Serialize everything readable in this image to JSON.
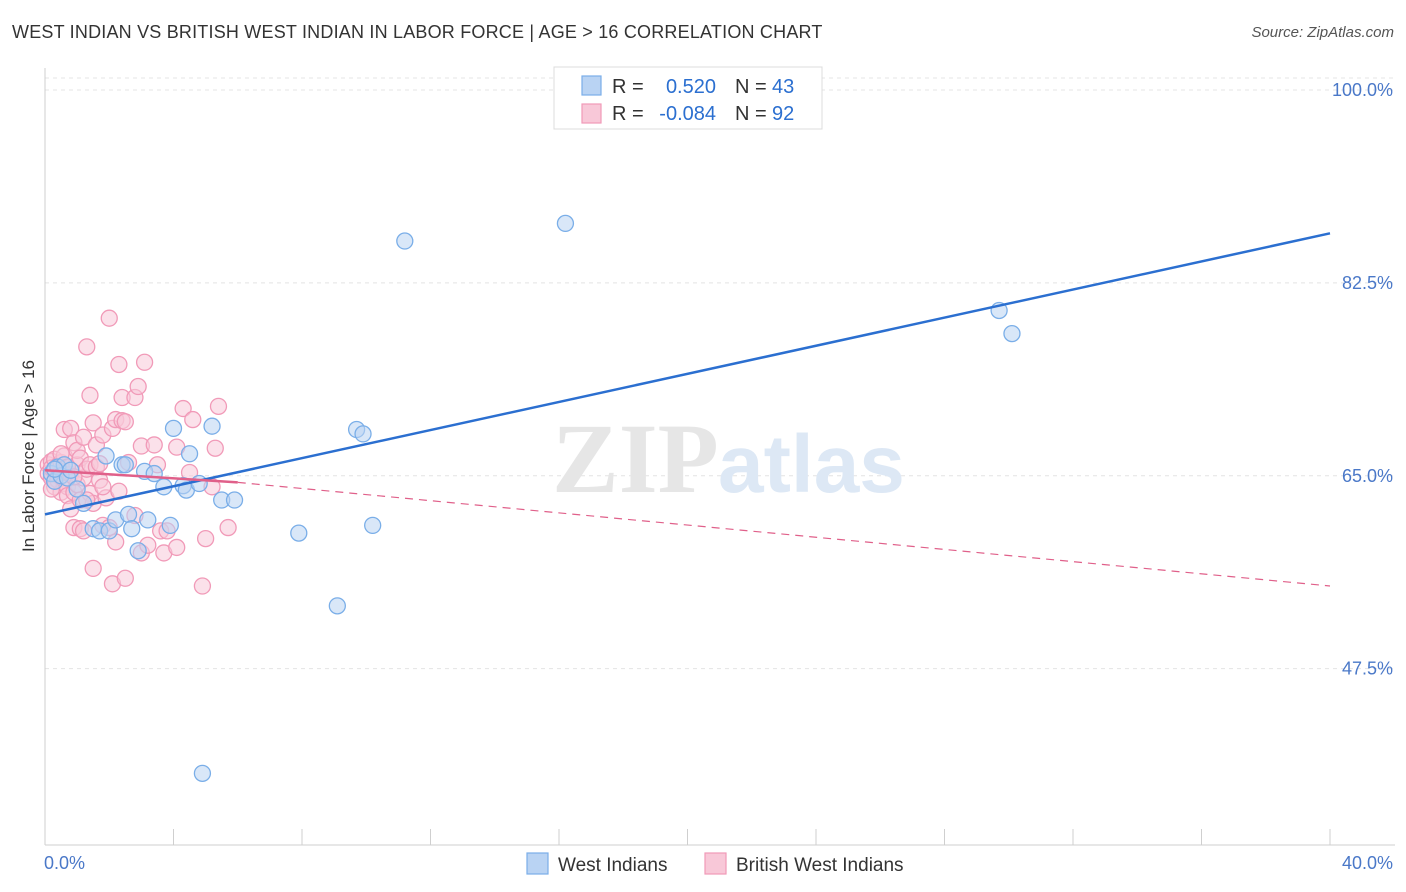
{
  "title": "WEST INDIAN VS BRITISH WEST INDIAN IN LABOR FORCE | AGE > 16 CORRELATION CHART",
  "source": "Source: ZipAtlas.com",
  "watermark": {
    "zip": "ZIP",
    "atlas": "atlas"
  },
  "chart_data": {
    "type": "scatter",
    "title": "WEST INDIAN VS BRITISH WEST INDIAN IN LABOR FORCE | AGE > 16 CORRELATION CHART",
    "xlabel": "",
    "ylabel": "In Labor Force | Age > 16",
    "xlim": [
      0,
      40
    ],
    "ylim": [
      31.5,
      102
    ],
    "x_tick_labels": [
      "0.0%",
      "40.0%"
    ],
    "y_ticks": [
      47.5,
      65.0,
      82.5,
      100.0
    ],
    "y_tick_labels": [
      "47.5%",
      "65.0%",
      "82.5%",
      "100.0%"
    ],
    "grid": true,
    "legend_position": "top-center",
    "stats": [
      {
        "r_label": "R =",
        "r": "0.520",
        "n_label": "N =",
        "n": "43"
      },
      {
        "r_label": "R =",
        "r": "-0.084",
        "n_label": "N =",
        "n": "92"
      }
    ],
    "series": [
      {
        "name": "West Indians",
        "color": "#7aaee8",
        "fill": "#b9d3f3",
        "line_color": "#2b6fd0",
        "trend": {
          "x": [
            0,
            40
          ],
          "y": [
            61.5,
            87.0
          ]
        },
        "points": [
          [
            0.2,
            65.2
          ],
          [
            0.3,
            64.5
          ],
          [
            0.4,
            65.8
          ],
          [
            0.5,
            65.0
          ],
          [
            0.6,
            66.0
          ],
          [
            0.7,
            64.8
          ],
          [
            0.8,
            65.5
          ],
          [
            1.0,
            63.8
          ],
          [
            1.2,
            62.5
          ],
          [
            1.5,
            60.2
          ],
          [
            1.7,
            60.0
          ],
          [
            1.9,
            66.8
          ],
          [
            2.0,
            60.0
          ],
          [
            2.2,
            61.0
          ],
          [
            2.4,
            66.0
          ],
          [
            2.5,
            66.0
          ],
          [
            2.6,
            61.5
          ],
          [
            2.7,
            60.2
          ],
          [
            2.9,
            58.2
          ],
          [
            3.1,
            65.4
          ],
          [
            3.2,
            61.0
          ],
          [
            3.4,
            65.2
          ],
          [
            3.7,
            64.0
          ],
          [
            3.9,
            60.5
          ],
          [
            4.0,
            69.3
          ],
          [
            4.3,
            64.1
          ],
          [
            4.4,
            63.7
          ],
          [
            4.5,
            67.0
          ],
          [
            4.8,
            64.3
          ],
          [
            5.2,
            69.5
          ],
          [
            5.5,
            62.8
          ],
          [
            5.9,
            62.8
          ],
          [
            7.9,
            59.8
          ],
          [
            9.1,
            53.2
          ],
          [
            9.7,
            69.2
          ],
          [
            9.9,
            68.8
          ],
          [
            10.2,
            60.5
          ],
          [
            11.2,
            86.3
          ],
          [
            16.2,
            87.9
          ],
          [
            29.7,
            80.0
          ],
          [
            30.1,
            77.9
          ],
          [
            4.9,
            38.0
          ],
          [
            0.3,
            65.6
          ]
        ]
      },
      {
        "name": "British West Indians",
        "color": "#f19ab8",
        "fill": "#f8c8d8",
        "line_color": "#e0608a",
        "trend_solid": {
          "x": [
            0,
            6.0
          ],
          "y": [
            65.5,
            64.4
          ]
        },
        "trend_dashed": {
          "x": [
            6.0,
            40
          ],
          "y": [
            64.4,
            55.0
          ]
        },
        "points": [
          [
            0.1,
            66.0
          ],
          [
            0.1,
            65.2
          ],
          [
            0.2,
            66.3
          ],
          [
            0.2,
            64.8
          ],
          [
            0.2,
            65.7
          ],
          [
            0.3,
            64.5
          ],
          [
            0.3,
            65.5
          ],
          [
            0.3,
            66.5
          ],
          [
            0.3,
            64.0
          ],
          [
            0.4,
            65.0
          ],
          [
            0.4,
            65.9
          ],
          [
            0.4,
            64.6
          ],
          [
            0.5,
            66.2
          ],
          [
            0.5,
            63.5
          ],
          [
            0.5,
            65.3
          ],
          [
            0.6,
            64.3
          ],
          [
            0.6,
            66.8
          ],
          [
            0.6,
            69.2
          ],
          [
            0.7,
            64.0
          ],
          [
            0.7,
            63.2
          ],
          [
            0.8,
            65.1
          ],
          [
            0.8,
            62.0
          ],
          [
            0.8,
            69.3
          ],
          [
            0.9,
            63.5
          ],
          [
            0.9,
            68.0
          ],
          [
            0.9,
            60.3
          ],
          [
            1.0,
            66.0
          ],
          [
            1.0,
            64.2
          ],
          [
            1.0,
            67.3
          ],
          [
            1.1,
            62.8
          ],
          [
            1.1,
            60.2
          ],
          [
            1.1,
            66.6
          ],
          [
            1.2,
            68.5
          ],
          [
            1.2,
            60.0
          ],
          [
            1.2,
            64.8
          ],
          [
            1.3,
            76.7
          ],
          [
            1.3,
            65.6
          ],
          [
            1.4,
            72.3
          ],
          [
            1.4,
            66.0
          ],
          [
            1.4,
            63.4
          ],
          [
            1.5,
            69.8
          ],
          [
            1.5,
            56.6
          ],
          [
            1.5,
            62.5
          ],
          [
            1.6,
            67.8
          ],
          [
            1.6,
            65.8
          ],
          [
            1.7,
            66.1
          ],
          [
            1.7,
            64.6
          ],
          [
            1.8,
            68.7
          ],
          [
            1.8,
            60.5
          ],
          [
            1.9,
            63.0
          ],
          [
            2.0,
            79.3
          ],
          [
            2.0,
            60.3
          ],
          [
            2.1,
            69.3
          ],
          [
            2.1,
            55.2
          ],
          [
            2.2,
            70.1
          ],
          [
            2.2,
            59.0
          ],
          [
            2.3,
            75.1
          ],
          [
            2.3,
            63.6
          ],
          [
            2.4,
            72.1
          ],
          [
            2.4,
            70.0
          ],
          [
            2.5,
            55.7
          ],
          [
            2.5,
            69.9
          ],
          [
            2.6,
            66.2
          ],
          [
            2.8,
            72.1
          ],
          [
            2.8,
            61.4
          ],
          [
            2.9,
            73.1
          ],
          [
            3.0,
            67.7
          ],
          [
            3.0,
            58.0
          ],
          [
            3.1,
            75.3
          ],
          [
            3.2,
            58.7
          ],
          [
            3.4,
            67.8
          ],
          [
            3.5,
            66.0
          ],
          [
            3.6,
            60.0
          ],
          [
            3.7,
            58.0
          ],
          [
            3.8,
            60.0
          ],
          [
            4.1,
            67.6
          ],
          [
            4.1,
            58.5
          ],
          [
            4.3,
            71.1
          ],
          [
            4.5,
            65.3
          ],
          [
            4.6,
            70.1
          ],
          [
            4.9,
            55.0
          ],
          [
            5.0,
            59.3
          ],
          [
            5.2,
            64.0
          ],
          [
            5.3,
            67.5
          ],
          [
            5.4,
            71.3
          ],
          [
            5.7,
            60.3
          ],
          [
            0.2,
            63.8
          ],
          [
            0.5,
            67.0
          ],
          [
            0.7,
            65.8
          ],
          [
            0.9,
            64.9
          ],
          [
            1.3,
            62.8
          ],
          [
            1.8,
            64.0
          ]
        ]
      }
    ]
  }
}
